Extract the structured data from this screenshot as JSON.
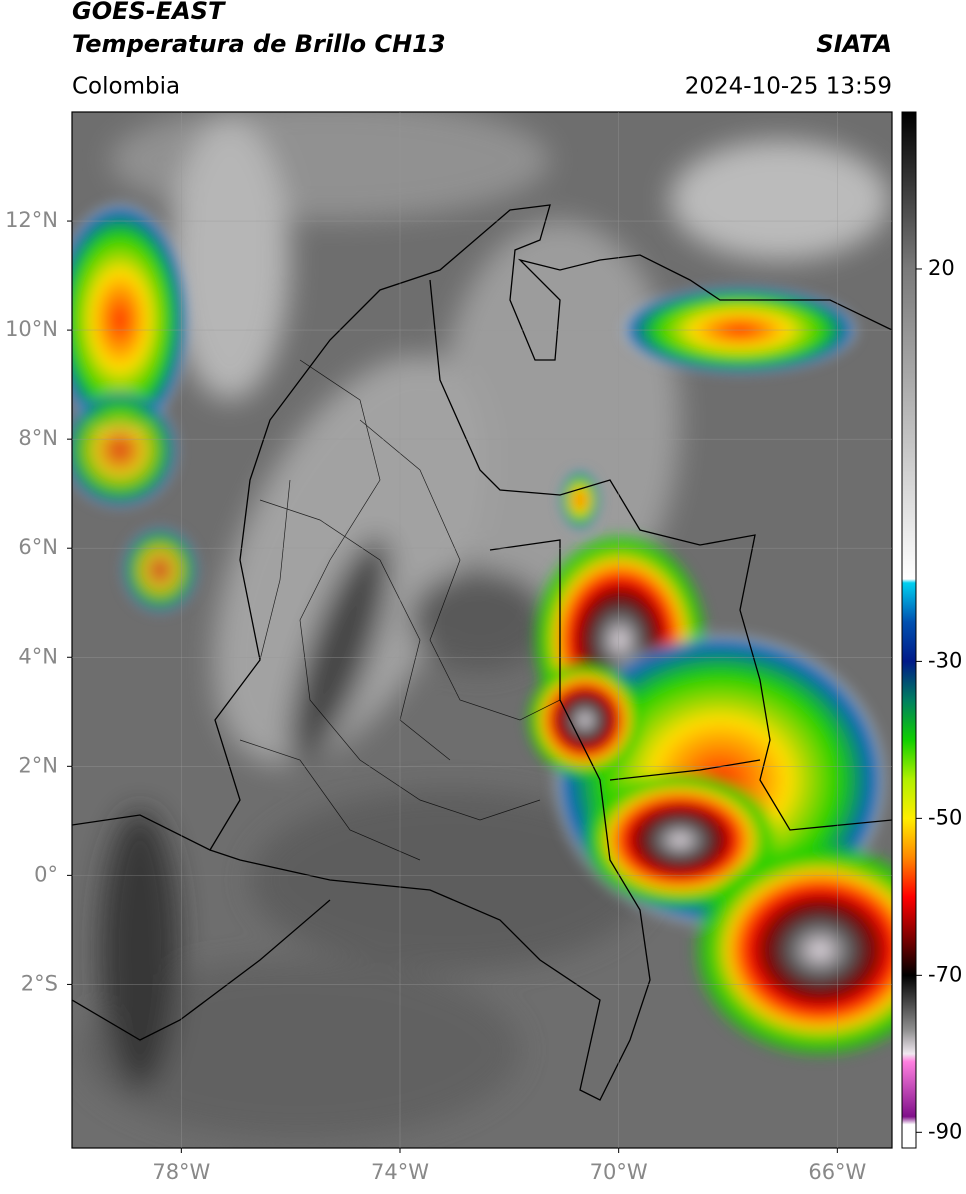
{
  "header": {
    "title": "GOES-EAST",
    "subtitle": "Temperatura de Brillo CH13",
    "source": "SIATA",
    "region": "Colombia",
    "datetime": "2024-10-25 13:59"
  },
  "map": {
    "xlim": [
      -80,
      -65
    ],
    "ylim": [
      -5,
      14
    ],
    "xticks": [
      {
        "value": -78,
        "label": "78°W"
      },
      {
        "value": -74,
        "label": "74°W"
      },
      {
        "value": -70,
        "label": "70°W"
      },
      {
        "value": -66,
        "label": "66°W"
      }
    ],
    "yticks": [
      {
        "value": 12,
        "label": "12°N"
      },
      {
        "value": 10,
        "label": "10°N"
      },
      {
        "value": 8,
        "label": "8°N"
      },
      {
        "value": 6,
        "label": "6°N"
      },
      {
        "value": 4,
        "label": "4°N"
      },
      {
        "value": 2,
        "label": "2°N"
      },
      {
        "value": 0,
        "label": "0°"
      },
      {
        "value": -2,
        "label": "2°S"
      }
    ],
    "grid": true
  },
  "colorbar": {
    "clim": [
      -92,
      40
    ],
    "ticks": [
      20,
      -30,
      -50,
      -70,
      -90
    ],
    "colors": [
      {
        "value": 40,
        "color": "#000000"
      },
      {
        "value": 20,
        "color": "#7a7a7a"
      },
      {
        "value": -19.5,
        "color": "#ffffff"
      },
      {
        "value": -20,
        "color": "#00d0f0"
      },
      {
        "value": -25,
        "color": "#0050b0"
      },
      {
        "value": -30,
        "color": "#001a88"
      },
      {
        "value": -35,
        "color": "#008060"
      },
      {
        "value": -40,
        "color": "#10d000"
      },
      {
        "value": -45,
        "color": "#b0f000"
      },
      {
        "value": -50,
        "color": "#ffee00"
      },
      {
        "value": -55,
        "color": "#ff8800"
      },
      {
        "value": -60,
        "color": "#ff0000"
      },
      {
        "value": -66,
        "color": "#6a0000"
      },
      {
        "value": -70,
        "color": "#000000"
      },
      {
        "value": -77,
        "color": "#909090"
      },
      {
        "value": -80,
        "color": "#f0e8f0"
      },
      {
        "value": -81,
        "color": "#ff80e0"
      },
      {
        "value": -88,
        "color": "#80108a"
      },
      {
        "value": -89,
        "color": "#ffffff"
      }
    ]
  }
}
